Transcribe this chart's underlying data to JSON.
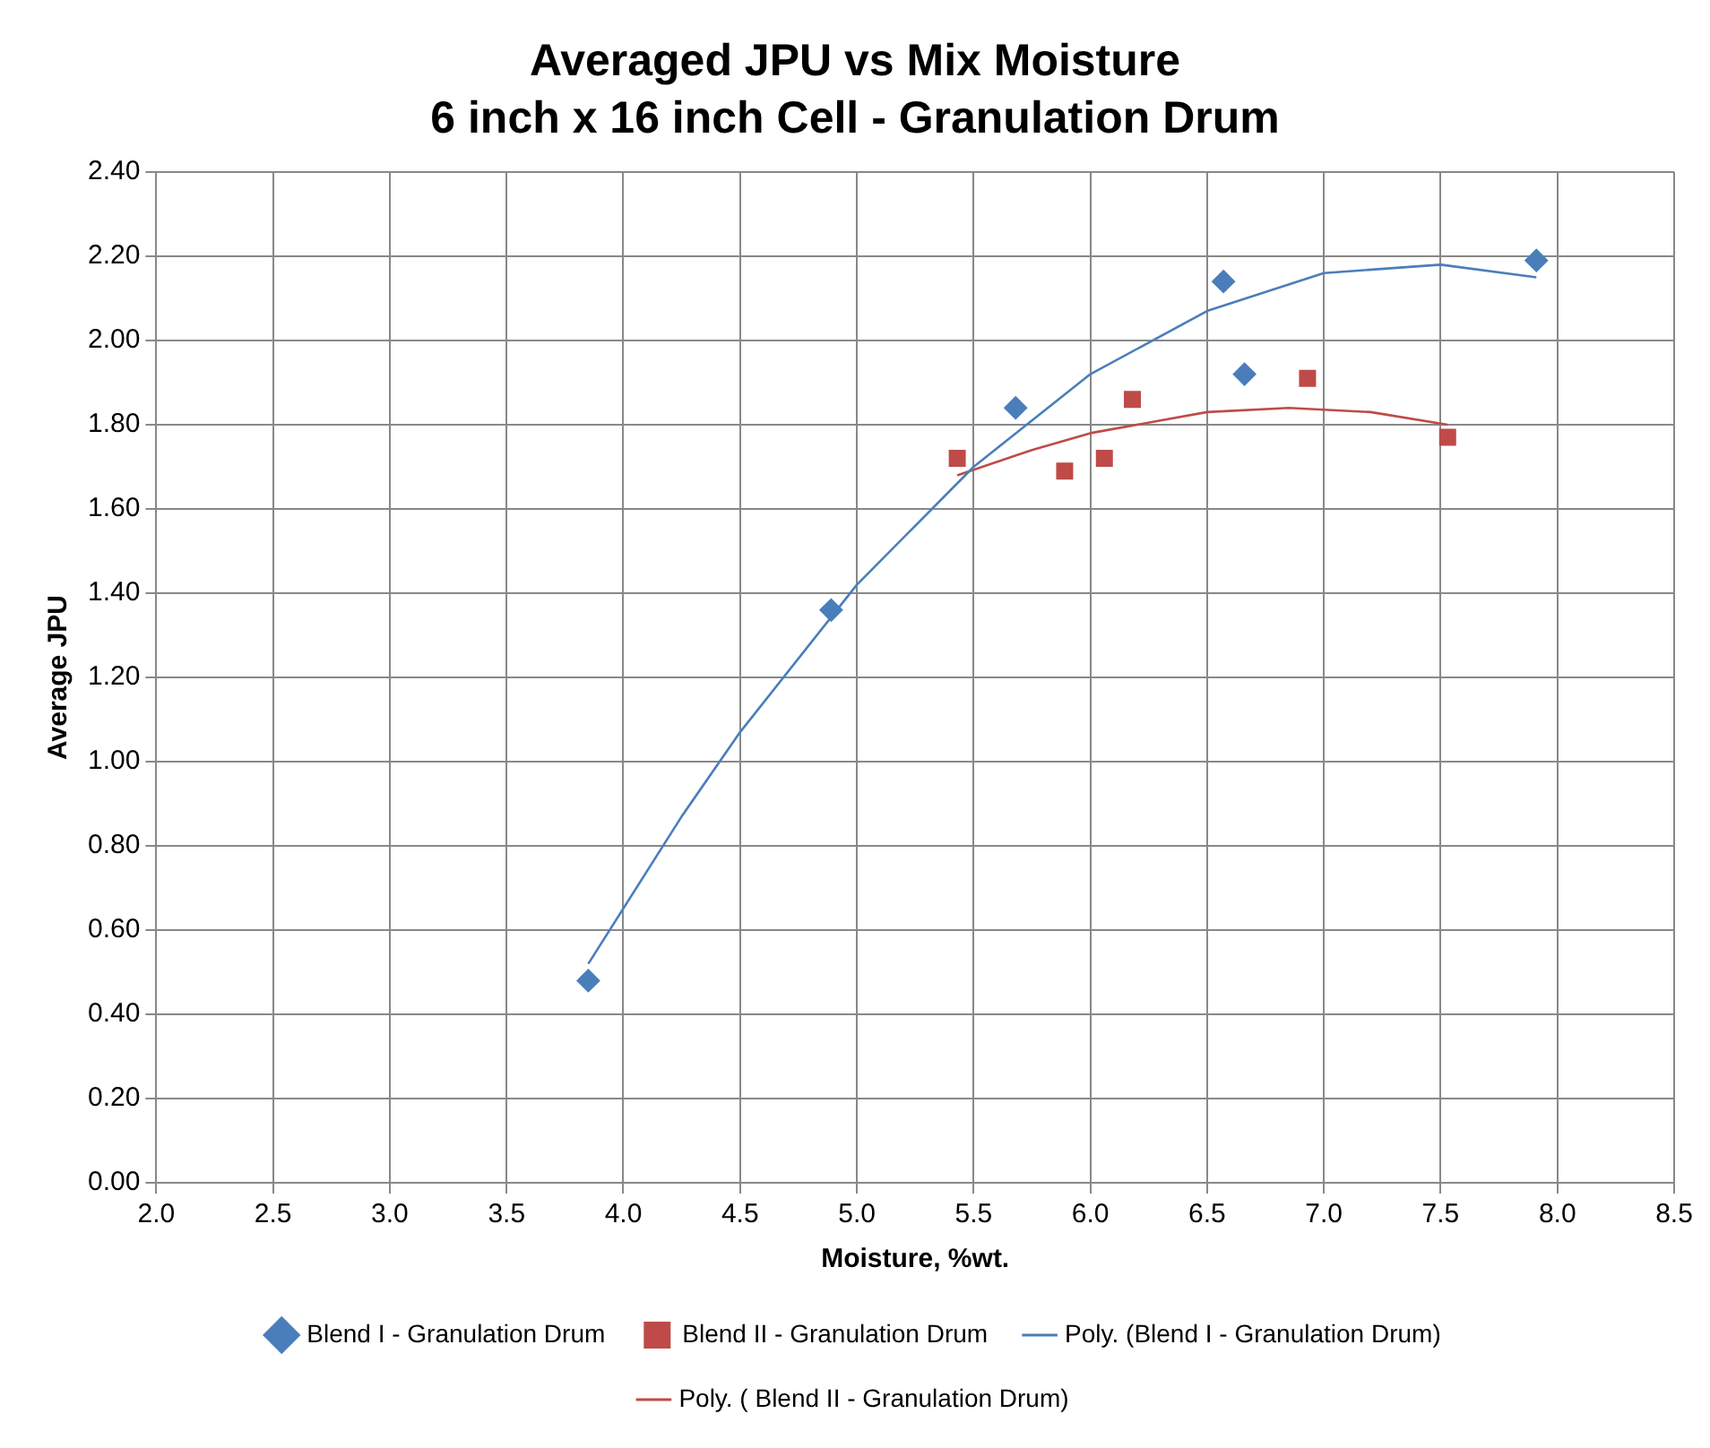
{
  "chart_data": {
    "type": "scatter",
    "title": "Averaged JPU vs Mix Moisture",
    "subtitle": "6 inch x 16 inch Cell - Granulation Drum",
    "xlabel": "Moisture, %wt.",
    "ylabel": "Average JPU",
    "series": [
      {
        "name": "Blend I - Granulation Drum",
        "type": "scatter",
        "marker": "diamond",
        "color": "#4a7ebb",
        "x": [
          3.85,
          4.89,
          5.68,
          6.57,
          6.66,
          7.91
        ],
        "values": [
          0.48,
          1.36,
          1.84,
          2.14,
          1.92,
          2.19
        ]
      },
      {
        "name": "Blend II - Granulation Drum",
        "type": "scatter",
        "marker": "square",
        "color": "#be4b48",
        "x": [
          5.43,
          5.89,
          6.06,
          6.18,
          6.93,
          7.53
        ],
        "values": [
          1.72,
          1.69,
          1.72,
          1.86,
          1.91,
          1.77
        ]
      },
      {
        "name": "Poly. (Blend I - Granulation Drum)",
        "type": "line",
        "marker": "none",
        "color": "#4a7ebb",
        "x": [
          3.85,
          4.25,
          4.5,
          5.0,
          5.5,
          6.0,
          6.5,
          7.0,
          7.5,
          7.91
        ],
        "values": [
          0.52,
          0.87,
          1.07,
          1.42,
          1.7,
          1.92,
          2.07,
          2.16,
          2.18,
          2.15
        ]
      },
      {
        "name": "Poly. ( Blend II - Granulation Drum)",
        "type": "line",
        "marker": "none",
        "color": "#be4b48",
        "x": [
          5.43,
          5.75,
          6.0,
          6.5,
          6.85,
          7.2,
          7.53
        ],
        "values": [
          1.68,
          1.74,
          1.78,
          1.83,
          1.84,
          1.83,
          1.8
        ]
      }
    ],
    "xlim": [
      2,
      8.5
    ],
    "xticks": [
      {
        "value": 2,
        "label": "2.0"
      },
      {
        "value": 2.5,
        "label": "2.5"
      },
      {
        "value": 3,
        "label": "3.0"
      },
      {
        "value": 3.5,
        "label": "3.5"
      },
      {
        "value": 4,
        "label": "4.0"
      },
      {
        "value": 4.5,
        "label": "4.5"
      },
      {
        "value": 5,
        "label": "5.0"
      },
      {
        "value": 5.5,
        "label": "5.5"
      },
      {
        "value": 6,
        "label": "6.0"
      },
      {
        "value": 6.5,
        "label": "6.5"
      },
      {
        "value": 7,
        "label": "7.0"
      },
      {
        "value": 7.5,
        "label": "7.5"
      },
      {
        "value": 8,
        "label": "8.0"
      },
      {
        "value": 8.5,
        "label": "8.5"
      }
    ],
    "ylim": [
      0,
      2.4
    ],
    "yticks": [
      {
        "value": 0,
        "label": "0.00"
      },
      {
        "value": 0.2,
        "label": "0.20"
      },
      {
        "value": 0.4,
        "label": "0.40"
      },
      {
        "value": 0.6,
        "label": "0.60"
      },
      {
        "value": 0.8,
        "label": "0.80"
      },
      {
        "value": 1,
        "label": "1.00"
      },
      {
        "value": 1.2,
        "label": "1.20"
      },
      {
        "value": 1.4,
        "label": "1.40"
      },
      {
        "value": 1.6,
        "label": "1.60"
      },
      {
        "value": 1.8,
        "label": "1.80"
      },
      {
        "value": 2,
        "label": "2.00"
      },
      {
        "value": 2.2,
        "label": "2.20"
      },
      {
        "value": 2.4,
        "label": "2.40"
      }
    ],
    "grid": true,
    "legend": "bottom"
  }
}
